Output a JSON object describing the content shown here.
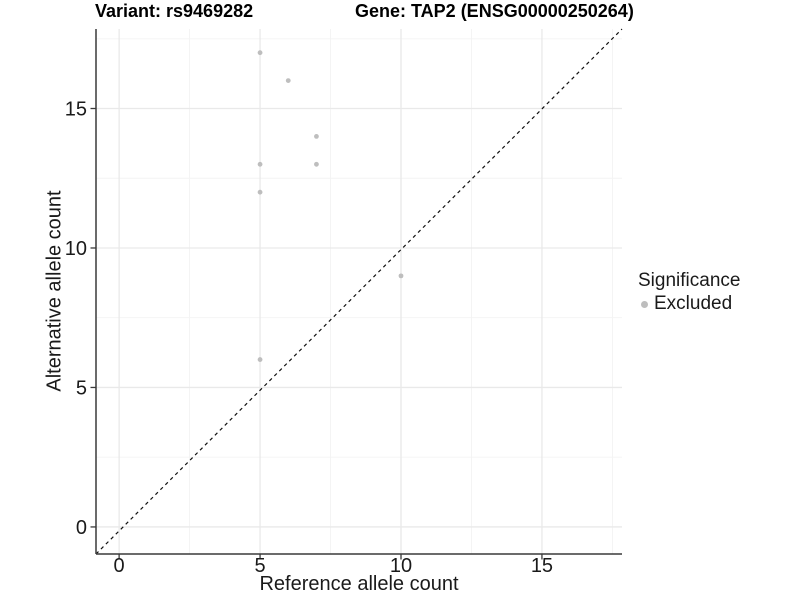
{
  "header": {
    "variant_title": "Variant: rs9469282",
    "gene_title": "Gene: TAP2 (ENSG00000250264)"
  },
  "chart_data": {
    "type": "scatter",
    "title_left": "Variant: rs9469282",
    "title_right": "Gene: TAP2 (ENSG00000250264)",
    "xlabel": "Reference allele count",
    "ylabel": "Alternative allele count",
    "xlim": [
      -0.82,
      17.84
    ],
    "ylim": [
      -0.97,
      17.85
    ],
    "x_ticks": [
      0,
      5,
      10,
      15
    ],
    "y_ticks": [
      0,
      5,
      10,
      15
    ],
    "x_minor_ticks": [
      2.5,
      7.5,
      12.5,
      17.5
    ],
    "y_minor_ticks": [
      2.5,
      7.5,
      12.5,
      17.5
    ],
    "grid": true,
    "series": [
      {
        "name": "Excluded",
        "color": "#bebebe",
        "points": [
          [
            5,
            6
          ],
          [
            5,
            12
          ],
          [
            5,
            13
          ],
          [
            5,
            17
          ],
          [
            6,
            16
          ],
          [
            7,
            13
          ],
          [
            7,
            14
          ],
          [
            10,
            9
          ]
        ]
      }
    ],
    "identity_line": {
      "style": "dashed",
      "color": "#111111",
      "from": [
        -0.82,
        -0.97
      ],
      "to": [
        17.84,
        17.85
      ]
    },
    "legend": {
      "title": "Significance",
      "position": "right",
      "items": [
        {
          "label": "Excluded",
          "color": "#bebebe"
        }
      ]
    }
  },
  "colors": {
    "point": "#bebebe",
    "grid_major": "#e9e9e9",
    "grid_minor": "#f3f3f3",
    "axis_line": "#3a3a3a",
    "tick_mark": "#3a3a3a",
    "text": "#1a1a1a",
    "dashed_line": "#111111",
    "background": "#ffffff"
  }
}
